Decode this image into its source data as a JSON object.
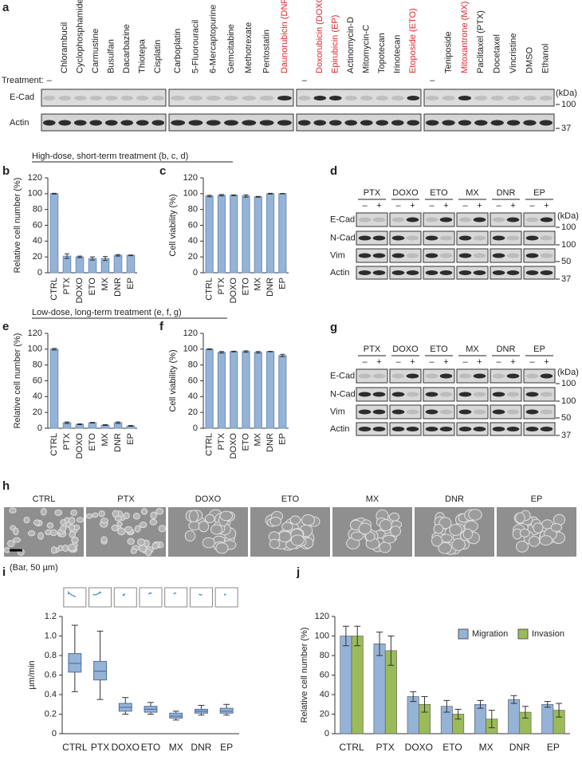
{
  "panel_a": {
    "panel": "a",
    "treatment_label": "Treatment:",
    "highlight_color": "#e3262d",
    "groups": [
      {
        "drugs": [
          {
            "name": "–",
            "highlight": false
          },
          {
            "name": "Chlorambucil",
            "highlight": false
          },
          {
            "name": "Cyclophosphamide",
            "highlight": false
          },
          {
            "name": "Carmustine",
            "highlight": false
          },
          {
            "name": "Busulfan",
            "highlight": false
          },
          {
            "name": "Dacarbazine",
            "highlight": false
          },
          {
            "name": "Thiotepa",
            "highlight": false
          },
          {
            "name": "Cisplatin",
            "highlight": false
          }
        ]
      },
      {
        "drugs": [
          {
            "name": "Carboplatin",
            "highlight": false
          },
          {
            "name": "5-Fluorouracil",
            "highlight": false
          },
          {
            "name": "6-Mercaptopurine",
            "highlight": false
          },
          {
            "name": "Gemcitabine",
            "highlight": false
          },
          {
            "name": "Methotrexate",
            "highlight": false
          },
          {
            "name": "Pentostatin",
            "highlight": false
          },
          {
            "name": "Daunorubicin (DNR)",
            "highlight": true
          }
        ]
      },
      {
        "drugs": [
          {
            "name": "–",
            "highlight": false
          },
          {
            "name": "Doxorubicin (DOXO)",
            "highlight": true
          },
          {
            "name": "Epirubicin (EP)",
            "highlight": true
          },
          {
            "name": "Actinomycin-D",
            "highlight": false
          },
          {
            "name": "Mitomycin-C",
            "highlight": false
          },
          {
            "name": "Topotecan",
            "highlight": false
          },
          {
            "name": "Irinotecan",
            "highlight": false
          },
          {
            "name": "Etoposide (ETO)",
            "highlight": true
          }
        ]
      },
      {
        "drugs": [
          {
            "name": "–",
            "highlight": false
          },
          {
            "name": "Teniposide",
            "highlight": false
          },
          {
            "name": "Mitoxantrone (MX)",
            "highlight": true
          },
          {
            "name": "Paclitaxel (PTX)",
            "highlight": false
          },
          {
            "name": "Docetaxel",
            "highlight": false
          },
          {
            "name": "Vincristine",
            "highlight": false
          },
          {
            "name": "DMSO",
            "highlight": false
          },
          {
            "name": "Ethanol",
            "highlight": false
          }
        ]
      }
    ],
    "rows": [
      "E-Cad",
      "Actin"
    ],
    "kda_label": "(kDa)",
    "markers": [
      "100",
      "37"
    ]
  },
  "headings": [
    "High-dose, short-term treatment (b, c, d)",
    "Low-dose, long-term treatment (e, f, g)"
  ],
  "blots": [
    {
      "panel": "d",
      "treatments": [
        "PTX",
        "DOXO",
        "ETO",
        "MX",
        "DNR",
        "EP"
      ],
      "signs": [
        "–",
        "+"
      ],
      "rows": [
        "E-Cad",
        "N-Cad",
        "Vim",
        "Actin"
      ],
      "kda_label": "(kDa)",
      "markers": [
        "100",
        "100",
        "50",
        "37"
      ]
    },
    {
      "panel": "g",
      "treatments": [
        "PTX",
        "DOXO",
        "ETO",
        "MX",
        "DNR",
        "EP"
      ],
      "signs": [
        "–",
        "+"
      ],
      "rows": [
        "E-Cad",
        "N-Cad",
        "Vim",
        "Actin"
      ],
      "kda_label": "(kDa)",
      "markers": [
        "100",
        "100",
        "50",
        "37"
      ]
    }
  ],
  "micrographs": {
    "panel": "h",
    "labels": [
      "CTRL",
      "PTX",
      "DOXO",
      "ETO",
      "MX",
      "DNR",
      "EP"
    ],
    "scale_note": "(Bar, 50 µm)"
  },
  "chart_data": [
    {
      "type": "bar",
      "panel": "b",
      "y_label": "Relative cell number (%)",
      "categories": [
        "CTRL",
        "PTX",
        "DOXO",
        "ETO",
        "MX",
        "DNR",
        "EP"
      ],
      "values": [
        100,
        21,
        20,
        18,
        18,
        22,
        22
      ],
      "errors": [
        0.5,
        3,
        1,
        2,
        2.5,
        1,
        0.5
      ],
      "color": "#95b3d7",
      "ylim": [
        0,
        120
      ],
      "yticks": [
        0,
        20,
        40,
        60,
        80,
        100,
        120
      ]
    },
    {
      "type": "bar",
      "panel": "c",
      "y_label": "Cell viability (%)",
      "categories": [
        "CTRL",
        "PTX",
        "DOXO",
        "ETO",
        "MX",
        "DNR",
        "EP"
      ],
      "values": [
        97,
        98,
        98,
        97,
        96,
        100,
        100
      ],
      "errors": [
        1,
        1,
        0.5,
        1.5,
        0.5,
        0.5,
        0.3
      ],
      "color": "#95b3d7",
      "ylim": [
        0,
        120
      ],
      "yticks": [
        0,
        20,
        40,
        60,
        80,
        100,
        120
      ]
    },
    {
      "type": "bar",
      "panel": "e",
      "y_label": "Relative cell number (%)",
      "categories": [
        "CTRL",
        "PTX",
        "DOXO",
        "ETO",
        "MX",
        "DNR",
        "EP"
      ],
      "values": [
        100,
        7,
        5,
        7,
        4,
        7,
        3
      ],
      "errors": [
        1,
        1,
        0.5,
        0.5,
        0.5,
        1,
        0.5
      ],
      "color": "#95b3d7",
      "ylim": [
        0,
        120
      ],
      "yticks": [
        0,
        20,
        40,
        60,
        80,
        100,
        120
      ]
    },
    {
      "type": "bar",
      "panel": "f",
      "y_label": "Cell viability (%)",
      "categories": [
        "CTRL",
        "PTX",
        "DOXO",
        "ETO",
        "MX",
        "DNR",
        "EP"
      ],
      "values": [
        100,
        96,
        97,
        97,
        96,
        97,
        92
      ],
      "errors": [
        0.5,
        1,
        0.5,
        1,
        1,
        0.3,
        1.5
      ],
      "color": "#95b3d7",
      "ylim": [
        0,
        120
      ],
      "yticks": [
        0,
        20,
        40,
        60,
        80,
        100,
        120
      ]
    },
    {
      "type": "box",
      "panel": "i",
      "y_label": "µm/min",
      "categories": [
        "CTRL",
        "PTX",
        "DOXO",
        "ETO",
        "MX",
        "DNR",
        "EP"
      ],
      "whisker_low": [
        0.43,
        0.35,
        0.2,
        0.2,
        0.14,
        0.19,
        0.19
      ],
      "q1": [
        0.63,
        0.55,
        0.23,
        0.22,
        0.16,
        0.21,
        0.21
      ],
      "median": [
        0.72,
        0.64,
        0.27,
        0.25,
        0.18,
        0.23,
        0.23
      ],
      "q3": [
        0.82,
        0.74,
        0.31,
        0.28,
        0.21,
        0.25,
        0.26
      ],
      "whisker_high": [
        1.11,
        1.05,
        0.37,
        0.32,
        0.23,
        0.29,
        0.3
      ],
      "color": "#95b3d7",
      "ylim": [
        0,
        1.2
      ],
      "yticks": [
        0,
        0.2,
        0.4,
        0.6,
        0.8,
        {
          "value": 1,
          "label": "1.0"
        },
        1.2
      ]
    },
    {
      "type": "grouped_bar",
      "panel": "j",
      "y_label": "Relative cell number (%)",
      "categories": [
        "CTRL",
        "PTX",
        "DOXO",
        "ETO",
        "MX",
        "DNR",
        "EP"
      ],
      "series": [
        {
          "name": "Migration",
          "color": "#95b3d7",
          "values": [
            100,
            92,
            38,
            28,
            30,
            35,
            30
          ],
          "errors": [
            10,
            12,
            5,
            6,
            4,
            4,
            3
          ]
        },
        {
          "name": "Invasion",
          "color": "#9bbb59",
          "values": [
            100,
            85,
            30,
            20,
            15,
            22,
            24
          ],
          "errors": [
            10,
            15,
            8,
            5,
            9,
            6,
            7
          ]
        }
      ],
      "legend": "top-right",
      "ylim": [
        0,
        120
      ],
      "yticks": [
        0,
        20,
        40,
        60,
        80,
        100,
        120
      ]
    }
  ]
}
